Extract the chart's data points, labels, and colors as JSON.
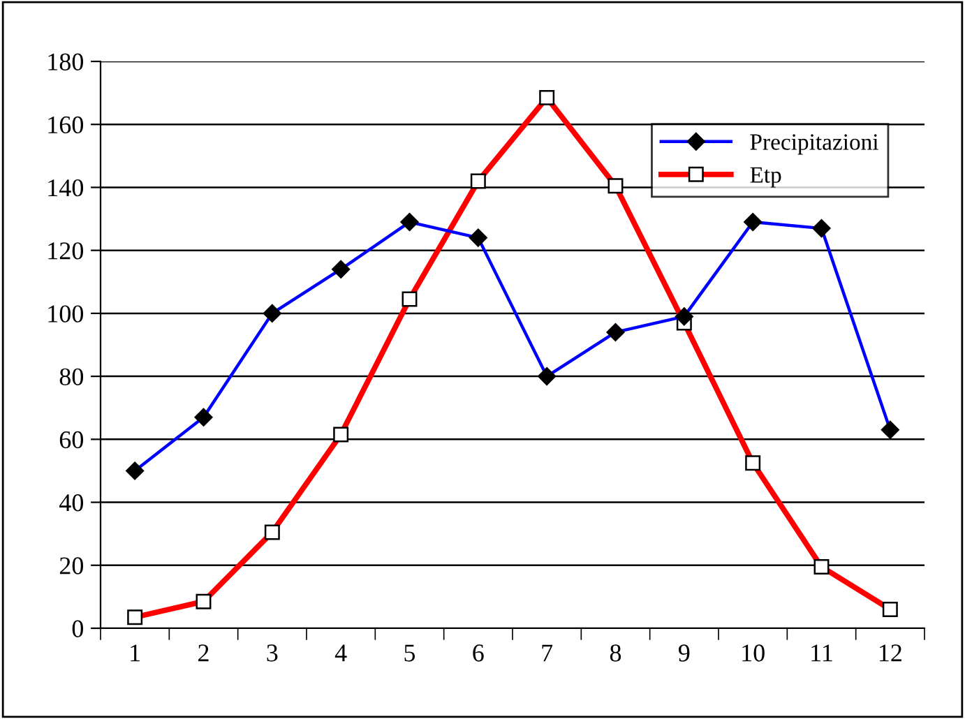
{
  "chart_data": {
    "type": "line",
    "categories": [
      "1",
      "2",
      "3",
      "4",
      "5",
      "6",
      "7",
      "8",
      "9",
      "10",
      "11",
      "12"
    ],
    "series": [
      {
        "name": "Precipitazioni",
        "color": "#0000ff",
        "marker": "diamond",
        "values": [
          50,
          67,
          100,
          114,
          129,
          124,
          80,
          94,
          99,
          129,
          127,
          63
        ]
      },
      {
        "name": "Etp",
        "color": "#ff0000",
        "marker": "square",
        "values": [
          3.5,
          8.5,
          30.5,
          61.5,
          104.5,
          142,
          168.5,
          140.5,
          97,
          52.5,
          19.5,
          6
        ]
      }
    ],
    "ylim": [
      0,
      180
    ],
    "yticks": [
      0,
      20,
      40,
      60,
      80,
      100,
      120,
      140,
      160,
      180
    ],
    "grid": "y",
    "legend": "top right"
  }
}
